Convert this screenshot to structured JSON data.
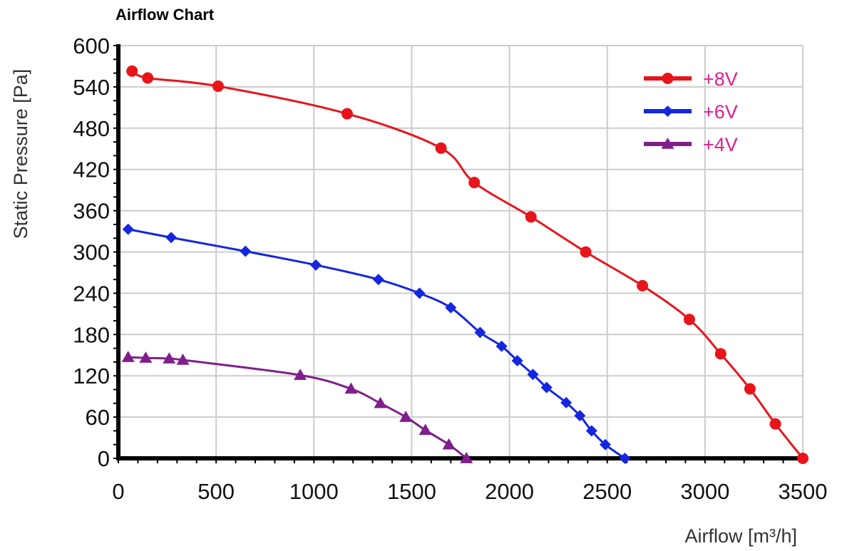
{
  "chart_data": {
    "type": "line",
    "title": "Airflow Chart",
    "xlabel": "Airflow [m³/h]",
    "ylabel": "Static Pressure [Pa]",
    "xlim": [
      0,
      3500
    ],
    "ylim": [
      0,
      600
    ],
    "x_ticks": [
      0,
      500,
      1000,
      1500,
      2000,
      2500,
      3000,
      3500
    ],
    "y_ticks": [
      0,
      60,
      120,
      180,
      240,
      300,
      360,
      420,
      480,
      540,
      600
    ],
    "grid": true,
    "legend_position": "top-right",
    "series": [
      {
        "name": "+8V",
        "color": "#e8141b",
        "label_color": "#e0208c",
        "marker": "circle",
        "x": [
          70,
          150,
          510,
          1170,
          1650,
          1820,
          2110,
          2390,
          2680,
          2920,
          3080,
          3230,
          3360,
          3500
        ],
        "y": [
          563,
          553,
          541,
          501,
          451,
          401,
          351,
          300,
          251,
          202,
          152,
          101,
          50,
          0
        ]
      },
      {
        "name": "+6V",
        "color": "#1426e0",
        "label_color": "#e0208c",
        "marker": "diamond",
        "x": [
          50,
          270,
          650,
          1010,
          1330,
          1540,
          1700,
          1850,
          1960,
          2040,
          2120,
          2190,
          2290,
          2360,
          2420,
          2490,
          2590
        ],
        "y": [
          333,
          321,
          301,
          281,
          260,
          240,
          219,
          183,
          163,
          142,
          122,
          103,
          81,
          62,
          40,
          20,
          0
        ]
      },
      {
        "name": "+4V",
        "color": "#801e8c",
        "label_color": "#e0208c",
        "marker": "triangle",
        "x": [
          50,
          140,
          260,
          330,
          930,
          1190,
          1340,
          1470,
          1570,
          1690,
          1780
        ],
        "y": [
          147,
          146,
          145,
          143,
          121,
          101,
          80,
          60,
          41,
          20,
          0
        ]
      }
    ]
  }
}
